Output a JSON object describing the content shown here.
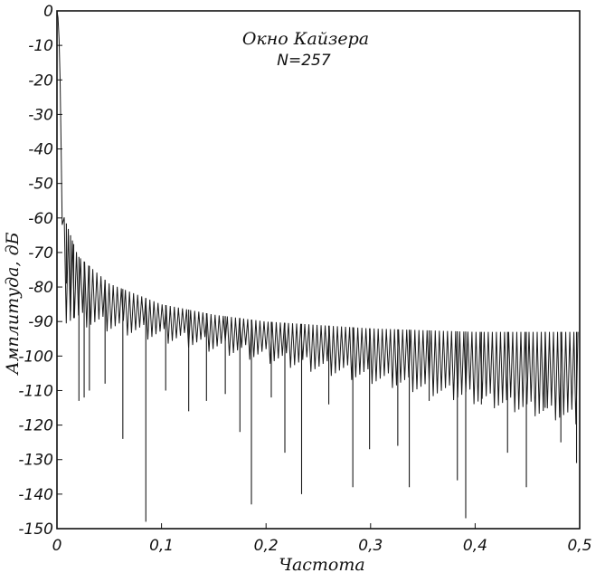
{
  "chart_data": {
    "type": "line",
    "title": "Окно Кайзера",
    "subtitle": "N=257",
    "xlabel": "Частота",
    "ylabel": "Амплитуда, дБ",
    "xlim": [
      0,
      0.5
    ],
    "ylim": [
      -150,
      0
    ],
    "x_ticks": [
      0,
      0.1,
      0.2,
      0.3,
      0.4,
      0.5
    ],
    "x_tick_labels": [
      "0",
      "0,1",
      "0,2",
      "0,3",
      "0,4",
      "0,5"
    ],
    "y_ticks": [
      0,
      -10,
      -20,
      -30,
      -40,
      -50,
      -60,
      -70,
      -80,
      -90,
      -100,
      -110,
      -120,
      -130,
      -140,
      -150
    ],
    "y_tick_labels": [
      "0",
      "-10",
      "-20",
      "-30",
      "-40",
      "-50",
      "-60",
      "-70",
      "-80",
      "-90",
      "-100",
      "-110",
      "-120",
      "-130",
      "-140",
      "-150"
    ],
    "grid": false,
    "main_lobe": [
      [
        0,
        0
      ],
      [
        0.001,
        -2
      ],
      [
        0.002,
        -8
      ],
      [
        0.003,
        -20
      ],
      [
        0.004,
        -40
      ],
      [
        0.005,
        -62
      ]
    ],
    "sidelobe_peaks": [
      [
        0.006,
        -59
      ],
      [
        0.02,
        -71
      ],
      [
        0.05,
        -79
      ],
      [
        0.1,
        -85
      ],
      [
        0.15,
        -88
      ],
      [
        0.2,
        -90
      ],
      [
        0.25,
        -91
      ],
      [
        0.3,
        -92
      ],
      [
        0.35,
        -92.5
      ],
      [
        0.4,
        -93
      ],
      [
        0.45,
        -93
      ],
      [
        0.5,
        -93
      ]
    ],
    "deep_nulls": [
      [
        0.009,
        -79
      ],
      [
        0.013,
        -87
      ],
      [
        0.016,
        -89
      ],
      [
        0.021,
        -113
      ],
      [
        0.026,
        -112
      ],
      [
        0.031,
        -110
      ],
      [
        0.046,
        -108
      ],
      [
        0.063,
        -124
      ],
      [
        0.085,
        -148
      ],
      [
        0.104,
        -110
      ],
      [
        0.126,
        -116
      ],
      [
        0.143,
        -113
      ],
      [
        0.161,
        -111
      ],
      [
        0.175,
        -122
      ],
      [
        0.186,
        -143
      ],
      [
        0.205,
        -112
      ],
      [
        0.218,
        -128
      ],
      [
        0.234,
        -140
      ],
      [
        0.26,
        -114
      ],
      [
        0.283,
        -138
      ],
      [
        0.299,
        -127
      ],
      [
        0.326,
        -126
      ],
      [
        0.337,
        -138
      ],
      [
        0.356,
        -113
      ],
      [
        0.383,
        -136
      ],
      [
        0.391,
        -147
      ],
      [
        0.406,
        -114
      ],
      [
        0.431,
        -128
      ],
      [
        0.449,
        -138
      ],
      [
        0.467,
        -115
      ],
      [
        0.482,
        -125
      ],
      [
        0.497,
        -131
      ]
    ],
    "envelope": {
      "null_floor_start": -88,
      "null_floor_end": -118,
      "lobe_spacing": 0.0039
    }
  }
}
